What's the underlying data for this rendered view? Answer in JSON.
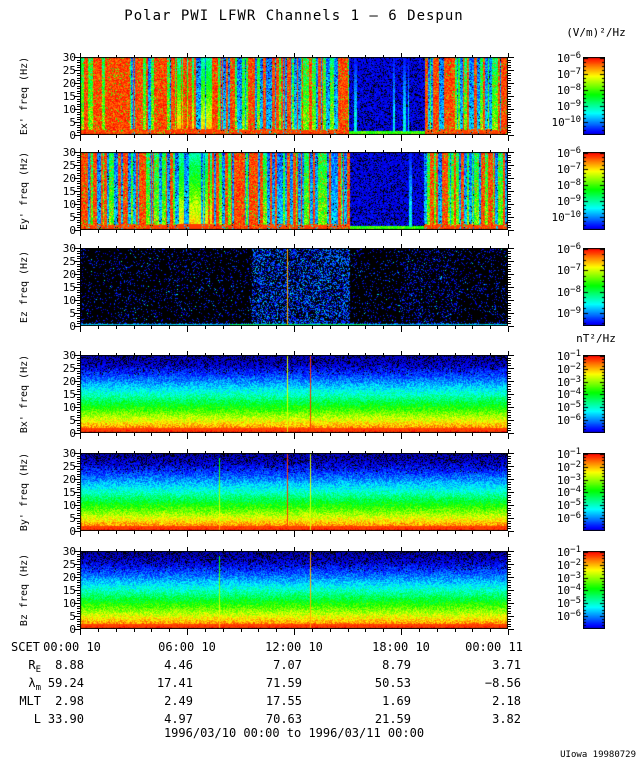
{
  "title": "Polar PWI LFWR Channels 1 — 6 Despun",
  "colorbars": {
    "electric_unit": "(V/m)²/Hz",
    "magnetic_unit": "nT²/Hz",
    "base": "10"
  },
  "footer": {
    "range": "1996/03/10 00:00 to 1996/03/11 00:00",
    "credit": "UIowa 19980729"
  },
  "chart_data": {
    "type": "heatmap",
    "title": "Polar PWI LFWR Channels 1 — 6 Despun",
    "x_axis": {
      "label": "SCET",
      "tick_labels": [
        "00:00 10",
        "06:00 10",
        "12:00 10",
        "18:00 10",
        "00:00 11"
      ],
      "range": "1996/03/10 00:00 to 1996/03/11 00:00",
      "hours_span": 24
    },
    "panels": [
      {
        "id": "ex",
        "ylabel": "Ex' freq (Hz)",
        "ylim": [
          0,
          30
        ],
        "yticks": [
          30,
          25,
          20,
          15,
          10,
          5,
          0
        ],
        "colorbar": {
          "unit": "(V/m)²/Hz",
          "tick_exponents": [
            "−6",
            "−7",
            "−8",
            "−9",
            "−10"
          ]
        },
        "texture": "burst",
        "vertical_lines": [],
        "description": "Dense broadband red/green/blue burst columns 0-30 Hz; quiet deep-blue interval ~15:00-19:15; yellow-green wash ~05:30-07:20; red band near 0 Hz"
      },
      {
        "id": "ey",
        "ylabel": "Ey' freq (Hz)",
        "ylim": [
          0,
          30
        ],
        "yticks": [
          30,
          25,
          20,
          15,
          10,
          5,
          0
        ],
        "colorbar": {
          "unit": "(V/m)²/Hz",
          "tick_exponents": [
            "−6",
            "−7",
            "−8",
            "−9",
            "−10"
          ]
        },
        "texture": "burst",
        "vertical_lines": [],
        "description": "Same broadband burst pattern as Ex' with quiet interval ~15:00-19:15"
      },
      {
        "id": "ez",
        "ylabel": "Ez freq (Hz)",
        "ylim": [
          0,
          30
        ],
        "yticks": [
          30,
          25,
          20,
          15,
          10,
          5,
          0
        ],
        "colorbar": {
          "unit": "(V/m)²/Hz",
          "tick_exponents": [
            "−6",
            "−7",
            "−8",
            "−9"
          ]
        },
        "texture": "sparse",
        "vertical_lines": [
          {
            "hour": 11.6,
            "color": "orange"
          }
        ],
        "description": "Near-black with faint blue speckle, denser ~09:30-15:00; cyan line near 0 Hz; single orange vertical line ~11:37"
      },
      {
        "id": "bx",
        "ylabel": "Bx' freq (Hz)",
        "ylim": [
          0,
          30
        ],
        "yticks": [
          30,
          25,
          20,
          15,
          10,
          5,
          0
        ],
        "colorbar": {
          "unit": "nT²/Hz",
          "tick_exponents": [
            "−1",
            "−2",
            "−3",
            "−4",
            "−5",
            "−6"
          ]
        },
        "texture": "gradient",
        "vertical_lines": [
          {
            "hour": 11.6,
            "color": "yellow"
          },
          {
            "hour": 12.9,
            "color": "red"
          }
        ],
        "description": "Layered noise floor: red at 0-3 Hz grading through yellow, green, cyan to dark blue at 30 Hz; two thin vertical lines"
      },
      {
        "id": "by",
        "ylabel": "By' freq (Hz)",
        "ylim": [
          0,
          30
        ],
        "yticks": [
          30,
          25,
          20,
          15,
          10,
          5,
          0
        ],
        "colorbar": {
          "unit": "nT²/Hz",
          "tick_exponents": [
            "−1",
            "−2",
            "−3",
            "−4",
            "−5",
            "−6"
          ]
        },
        "texture": "gradient",
        "vertical_lines": [
          {
            "hour": 7.8,
            "color": "green",
            "kind": "spike"
          },
          {
            "hour": 11.6,
            "color": "red"
          },
          {
            "hour": 12.9,
            "color": "yellow"
          }
        ],
        "description": "Same layered noise floor; narrow green-yellow spike ~07:48 plus red and yellow vertical lines"
      },
      {
        "id": "bz",
        "ylabel": "Bz freq (Hz)",
        "ylim": [
          0,
          30
        ],
        "yticks": [
          30,
          25,
          20,
          15,
          10,
          5,
          0
        ],
        "colorbar": {
          "unit": "nT²/Hz",
          "tick_exponents": [
            "−1",
            "−2",
            "−3",
            "−4",
            "−5",
            "−6"
          ]
        },
        "texture": "gradient",
        "vertical_lines": [
          {
            "hour": 7.8,
            "color": "green",
            "kind": "spike"
          },
          {
            "hour": 12.9,
            "color": "orange"
          }
        ],
        "description": "Same layered noise floor; narrow green-yellow spike ~07:48 and orange vertical line ~12:53"
      }
    ],
    "ephemeris": {
      "scet_label": "SCET",
      "time_ticks": [
        "00:00 10",
        "06:00 10",
        "12:00 10",
        "18:00 10",
        "00:00 11"
      ],
      "rows": [
        {
          "base": "R",
          "sub": "E",
          "values": [
            "8.88",
            "4.46",
            "7.07",
            "8.79",
            "3.71"
          ]
        },
        {
          "base": "λ",
          "sub": "m",
          "values": [
            "59.24",
            "17.41",
            "71.59",
            "50.53",
            "−8.56"
          ]
        },
        {
          "base": "MLT",
          "sub": "",
          "values": [
            "2.98",
            "2.49",
            "17.55",
            "1.69",
            "2.18"
          ]
        },
        {
          "base": "L",
          "sub": "",
          "values": [
            "33.90",
            "4.97",
            "70.63",
            "21.59",
            "3.82"
          ]
        }
      ]
    }
  }
}
